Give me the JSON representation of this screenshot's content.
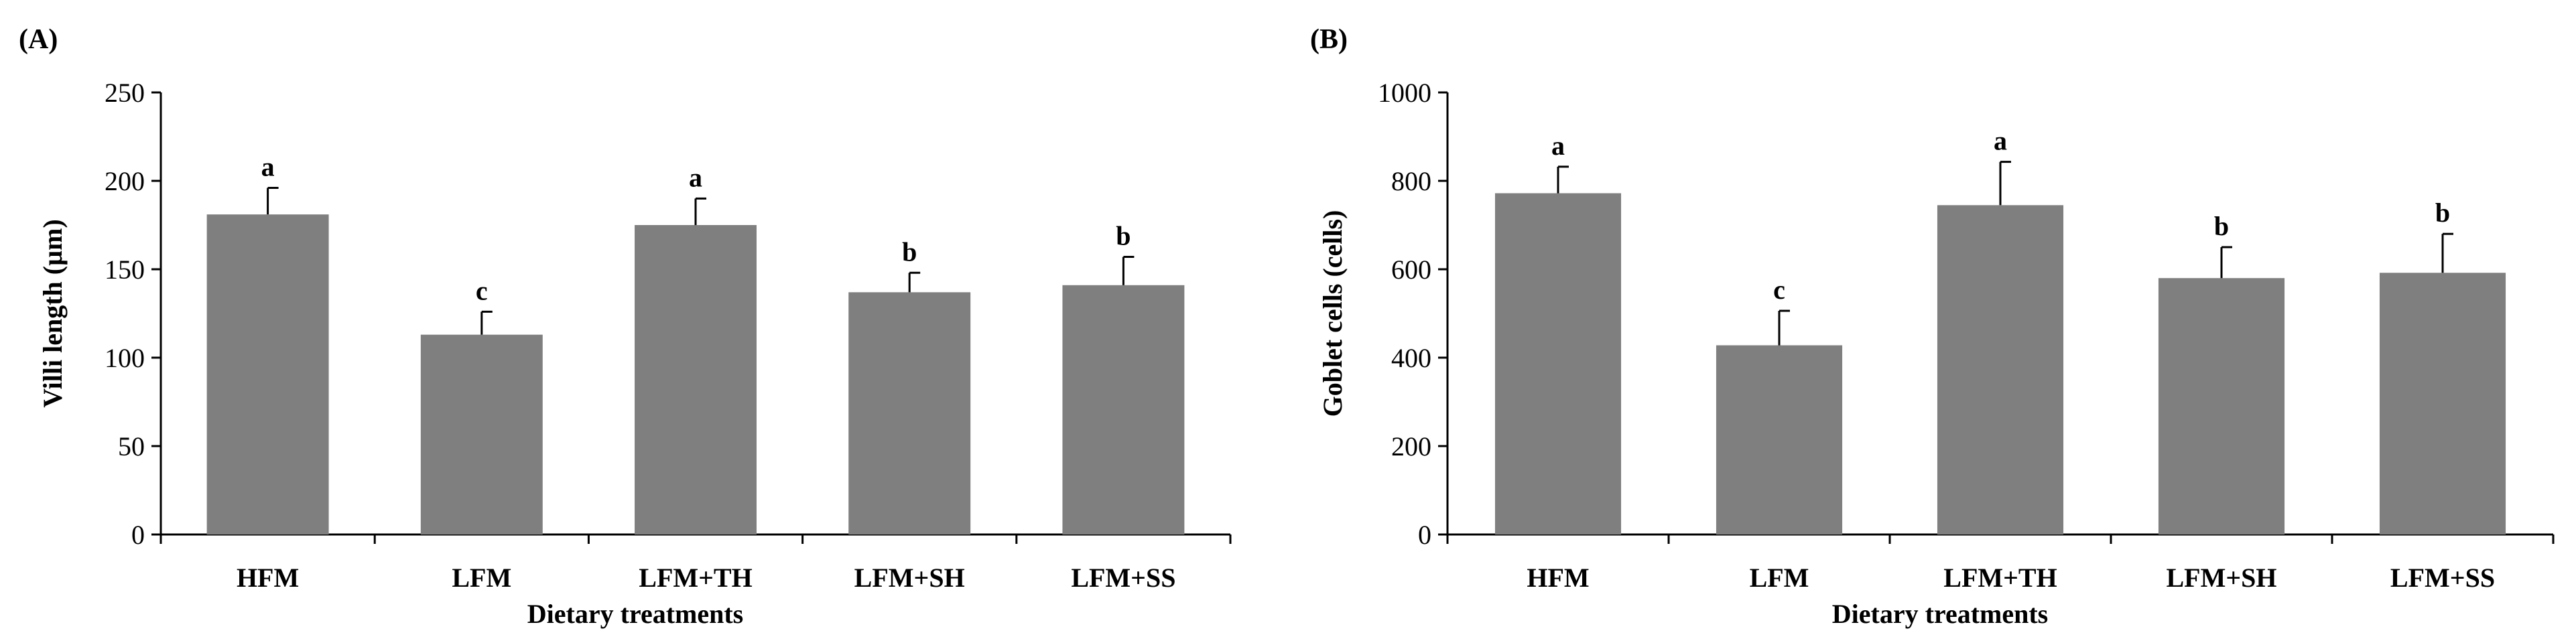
{
  "chart_data": [
    {
      "type": "bar",
      "panel_label": "(A)",
      "categories": [
        "HFM",
        "LFM",
        "LFM+TH",
        "LFM+SH",
        "LFM+SS"
      ],
      "values": [
        181,
        113,
        175,
        137,
        141
      ],
      "errors": [
        15,
        13,
        15,
        11,
        16
      ],
      "significance": [
        "a",
        "c",
        "a",
        "b",
        "b"
      ],
      "yticks": [
        "0",
        "50",
        "100",
        "150",
        "200",
        "250"
      ],
      "ylim": [
        0,
        250
      ],
      "xlabel": "Dietary treatments",
      "ylabel": "Villi length (µm)",
      "bar_color": "#7f7f7f",
      "grid": false
    },
    {
      "type": "bar",
      "panel_label": "(B)",
      "categories": [
        "HFM",
        "LFM",
        "LFM+TH",
        "LFM+SH",
        "LFM+SS"
      ],
      "values": [
        772,
        428,
        745,
        580,
        592
      ],
      "errors": [
        60,
        78,
        98,
        70,
        88
      ],
      "significance": [
        "a",
        "c",
        "a",
        "b",
        "b"
      ],
      "yticks": [
        "0",
        "200",
        "400",
        "600",
        "800",
        "1000"
      ],
      "ylim": [
        0,
        1000
      ],
      "xlabel": "Dietary treatments",
      "ylabel": "Goblet cells (cells)",
      "bar_color": "#7f7f7f",
      "grid": false
    }
  ]
}
